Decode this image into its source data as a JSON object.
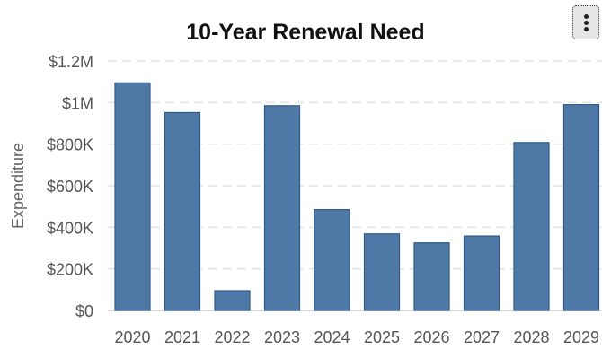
{
  "chart_data": {
    "type": "bar",
    "title": "10-Year Renewal Need",
    "xlabel": "",
    "ylabel": "Expenditure",
    "categories": [
      "2020",
      "2021",
      "2022",
      "2023",
      "2024",
      "2025",
      "2026",
      "2027",
      "2028",
      "2029"
    ],
    "values": [
      1095000,
      952000,
      95000,
      985000,
      485000,
      368000,
      325000,
      358000,
      808000,
      990000
    ],
    "ylim": [
      0,
      1200000
    ],
    "yticks": [
      0,
      200000,
      400000,
      600000,
      800000,
      1000000,
      1200000
    ],
    "ytick_labels": [
      "$0",
      "$200K",
      "$400K",
      "$600K",
      "$800K",
      "$1M",
      "$1.2M"
    ],
    "grid": true,
    "legend": "none",
    "bar_color": "#4e79a7"
  },
  "menu": {
    "icon": "more-vertical-icon"
  }
}
